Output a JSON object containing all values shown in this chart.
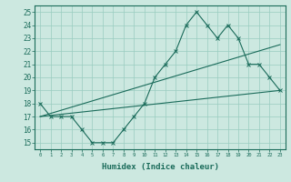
{
  "title": "",
  "xlabel": "Humidex (Indice chaleur)",
  "ylabel": "",
  "bg_color": "#cce8e0",
  "grid_color": "#99ccc0",
  "line_color": "#1a6b5a",
  "xlim": [
    -0.5,
    23.5
  ],
  "ylim": [
    14.5,
    25.5
  ],
  "yticks": [
    15,
    16,
    17,
    18,
    19,
    20,
    21,
    22,
    23,
    24,
    25
  ],
  "xticks": [
    0,
    1,
    2,
    3,
    4,
    5,
    6,
    7,
    8,
    9,
    10,
    11,
    12,
    13,
    14,
    15,
    16,
    17,
    18,
    19,
    20,
    21,
    22,
    23
  ],
  "series": [
    {
      "x": [
        0,
        1,
        2,
        3,
        4,
        5,
        6,
        7,
        8,
        9,
        10,
        11,
        12,
        13,
        14,
        15,
        16,
        17,
        18,
        19,
        20,
        21,
        22,
        23
      ],
      "y": [
        18,
        17,
        17,
        17,
        16,
        15,
        15,
        15,
        16,
        17,
        18,
        20,
        21,
        22,
        24,
        25,
        24,
        23,
        24,
        23,
        21,
        21,
        20,
        19
      ],
      "marker": true
    },
    {
      "x": [
        0,
        23
      ],
      "y": [
        17,
        19
      ],
      "marker": false
    },
    {
      "x": [
        0,
        23
      ],
      "y": [
        17,
        22.5
      ],
      "marker": false
    }
  ]
}
